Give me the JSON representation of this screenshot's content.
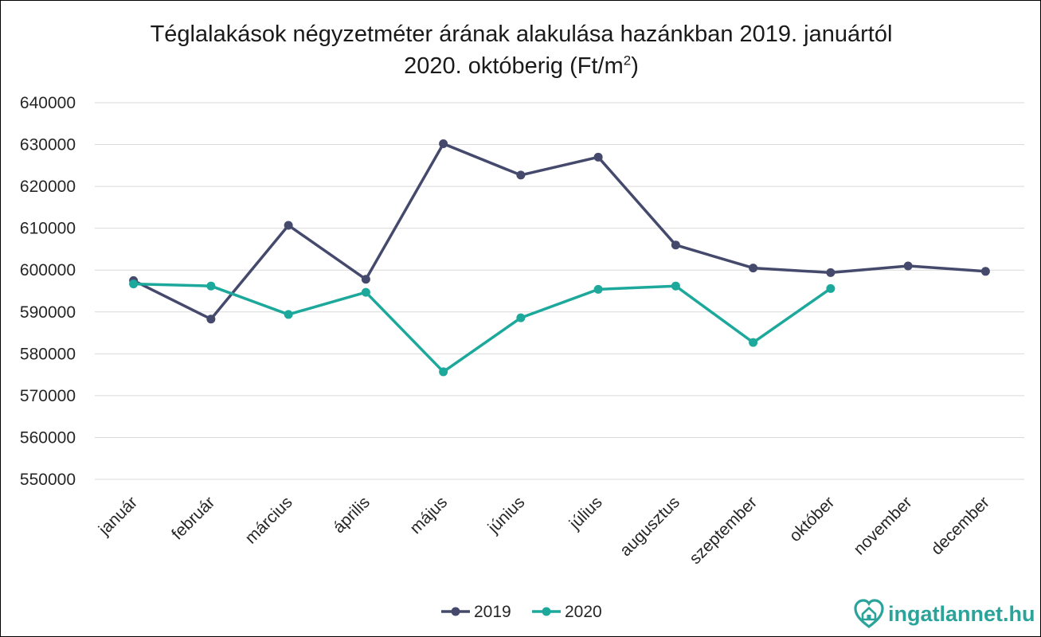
{
  "chart_data": {
    "type": "line",
    "title_line1": "Téglalakások négyzetméter árának alakulása hazánkban 2019. januártól",
    "title_line2_prefix": "2020. októberig (Ft/m",
    "title_line2_sup": "2",
    "title_line2_suffix": ")",
    "categories": [
      "január",
      "február",
      "március",
      "április",
      "május",
      "június",
      "július",
      "augusztus",
      "szeptember",
      "október",
      "november",
      "december"
    ],
    "ylim": [
      550000,
      640000
    ],
    "yticks": [
      550000,
      560000,
      570000,
      580000,
      590000,
      600000,
      610000,
      620000,
      630000,
      640000
    ],
    "grid": true,
    "legend_position": "bottom",
    "series": [
      {
        "name": "2019",
        "color": "#454a6d",
        "values": [
          597500,
          588300,
          610700,
          597800,
          630200,
          622700,
          627000,
          606000,
          600500,
          599400,
          601000,
          599700
        ]
      },
      {
        "name": "2020",
        "color": "#1da89c",
        "values": [
          596700,
          596200,
          589400,
          594700,
          575700,
          588600,
          595400,
          596200,
          582700,
          595600,
          null,
          null
        ]
      }
    ]
  },
  "logo": {
    "text": "ingatlannet.hu",
    "icon": "house-heart-icon",
    "color": "#2aa39a"
  }
}
